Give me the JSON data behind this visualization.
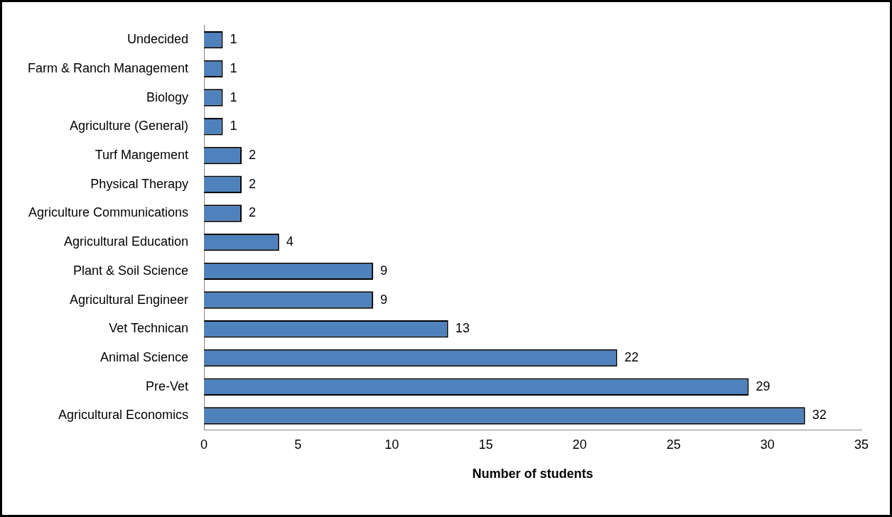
{
  "chart_data": {
    "type": "bar",
    "orientation": "horizontal",
    "xlabel": "Number of students",
    "categories": [
      "Undecided",
      "Farm & Ranch Management",
      "Biology",
      "Agriculture (General)",
      "Turf Mangement",
      "Physical Therapy",
      "Agriculture Communications",
      "Agricultural Education",
      "Plant & Soil Science",
      "Agricultural Engineer",
      "Vet Technican",
      "Animal Science",
      "Pre-Vet",
      "Agricultural Economics"
    ],
    "values": [
      1,
      1,
      1,
      1,
      2,
      2,
      2,
      4,
      9,
      9,
      13,
      22,
      29,
      32
    ],
    "color": "#4f81bd",
    "xlim": [
      0,
      35
    ],
    "xticks": [
      0,
      5,
      10,
      15,
      20,
      25,
      30,
      35
    ],
    "grid": false,
    "data_labels": true
  }
}
